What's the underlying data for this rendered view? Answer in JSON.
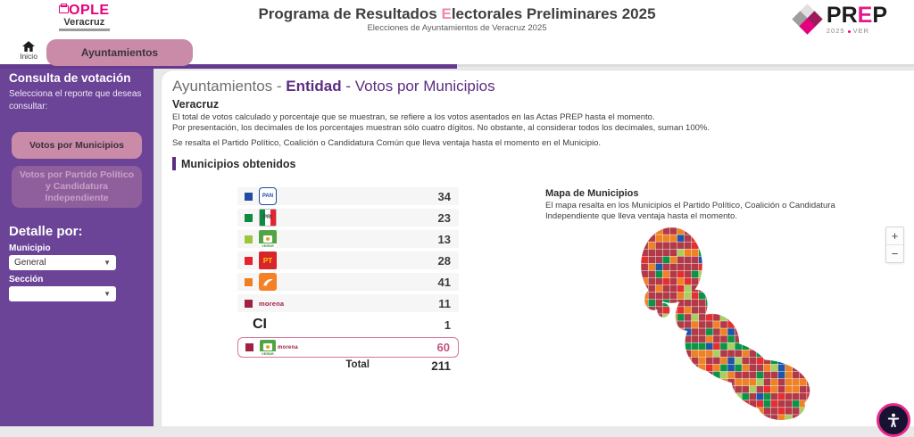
{
  "header": {
    "ople_line1": "OPLE",
    "ople_line2": "Veracruz",
    "title_pre": "Programa de Resultados ",
    "title_highlight": "E",
    "title_post": "lectorales Preliminares 2025",
    "subtitle": "Elecciones de Ayuntamientos de Veracruz 2025",
    "prep": {
      "pr": "PR",
      "e": "E",
      "p": "P",
      "year": "2025",
      "state": "VER"
    }
  },
  "tabs": {
    "inicio": "Inicio",
    "ayuntamientos": "Ayuntamientos"
  },
  "sidebar": {
    "title": "Consulta de votación",
    "subtitle": "Selecciona el reporte que deseas consultar:",
    "button_active": "Votos por Municipios",
    "button_disabled": "Votos por Partido Político y Candidatura Independiente",
    "detail_title": "Detalle por:",
    "municipio_label": "Municipio",
    "municipio_value": "General",
    "seccion_label": "Sección",
    "seccion_value": ""
  },
  "main": {
    "breadcrumb_1": "Ayuntamientos - ",
    "breadcrumb_2": "Entidad",
    "breadcrumb_3": " - Votos por Municipios",
    "state": "Veracruz",
    "note_1": "El total de votos calculado y porcentaje que se muestran, se refiere a los votos asentados en las Actas PREP hasta el momento.",
    "note_2": "Por presentación, los decimales de los porcentajes muestran sólo cuatro dígitos. No obstante, al considerar todos los decimales, suman 100%.",
    "note_3": "Se resalta el Partido Político, Coalición o Candidatura Común que lleva ventaja hasta el momento en el Municipio.",
    "section_title": "Municipios obtenidos",
    "total_label": "Total",
    "total_value": "211"
  },
  "results": {
    "rows": [
      {
        "party": "PAN",
        "badge_text": "PAN",
        "bullet": "#1f4ba0",
        "value": "34",
        "leading": false
      },
      {
        "party": "PRI",
        "badge_text": "PRI",
        "bullet": "#0c8a42",
        "value": "23",
        "leading": false
      },
      {
        "party": "PVEM",
        "badge_text": "VERDE",
        "bullet": "#9bc53d",
        "value": "13",
        "leading": false
      },
      {
        "party": "PT",
        "badge_text": "PT",
        "bullet": "#e8212e",
        "value": "28",
        "leading": false
      },
      {
        "party": "MC",
        "badge_text": "",
        "bullet": "#f0801f",
        "value": "41",
        "leading": false
      },
      {
        "party": "MORENA",
        "badge_text": "morena",
        "bullet": "#9f2241",
        "value": "11",
        "leading": false
      },
      {
        "party": "CI",
        "badge_text": "CI",
        "bullet": "",
        "value": "1",
        "leading": false
      },
      {
        "party": "PVEM-MORENA",
        "badge_text": "VERDE",
        "badge_text_2": "morena",
        "bullet": "#9f2241",
        "value": "60",
        "leading": true
      }
    ]
  },
  "map": {
    "title": "Mapa de Municipios",
    "description": "El mapa resalta en los Municipios el Partido Político, Coalición o Candidatura Independiente que lleva ventaja hasta el momento.",
    "zoom_in": "+",
    "zoom_out": "−",
    "palette": [
      {
        "c": "#b23a48",
        "w": 45
      },
      {
        "c": "#f08223",
        "w": 17
      },
      {
        "c": "#0a9448",
        "w": 12
      },
      {
        "c": "#a8cf60",
        "w": 10
      },
      {
        "c": "#e62e2e",
        "w": 9
      },
      {
        "c": "#1d55a8",
        "w": 7
      }
    ]
  },
  "colors": {
    "sidebar_purple": "#6b4397",
    "accent_purple": "#5b2d82",
    "tab_pink": "#c98ba8",
    "highlight_pink": "#d4749a",
    "prep_magenta": "#e5007d"
  }
}
